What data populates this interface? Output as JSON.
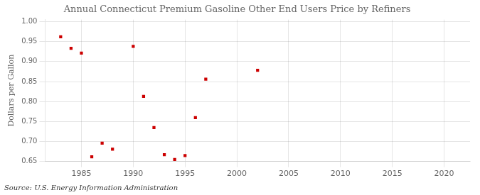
{
  "chart_data": {
    "type": "scatter",
    "title": "Annual Connecticut Premium Gasoline Other End Users Price by Refiners",
    "ylabel": "Dollars per Gallon",
    "annotation": "Source: U.S. Energy Information Administration",
    "x": [
      1983,
      1984,
      1985,
      1986,
      1987,
      1988,
      1990,
      1991,
      1992,
      1993,
      1994,
      1995,
      1996,
      1997,
      2002
    ],
    "values": [
      0.962,
      0.933,
      0.921,
      0.662,
      0.696,
      0.681,
      0.938,
      0.813,
      0.735,
      0.667,
      0.655,
      0.665,
      0.76,
      0.856,
      0.878
    ],
    "color": "#cc0000",
    "marker": "square",
    "xlim": [
      1981.5,
      2022.5
    ],
    "ylim": [
      0.65,
      1.005
    ],
    "xticks": [
      1985,
      1990,
      1995,
      2000,
      2005,
      2010,
      2015,
      2020
    ],
    "yticks": [
      0.65,
      {
        "value": 0.7,
        "label": "0.70"
      },
      0.75,
      {
        "value": 0.8,
        "label": "0.80"
      },
      0.85,
      {
        "value": 0.9,
        "label": "0.90"
      },
      0.95,
      {
        "value": 1.0,
        "label": "1.00"
      }
    ],
    "grid": true
  }
}
